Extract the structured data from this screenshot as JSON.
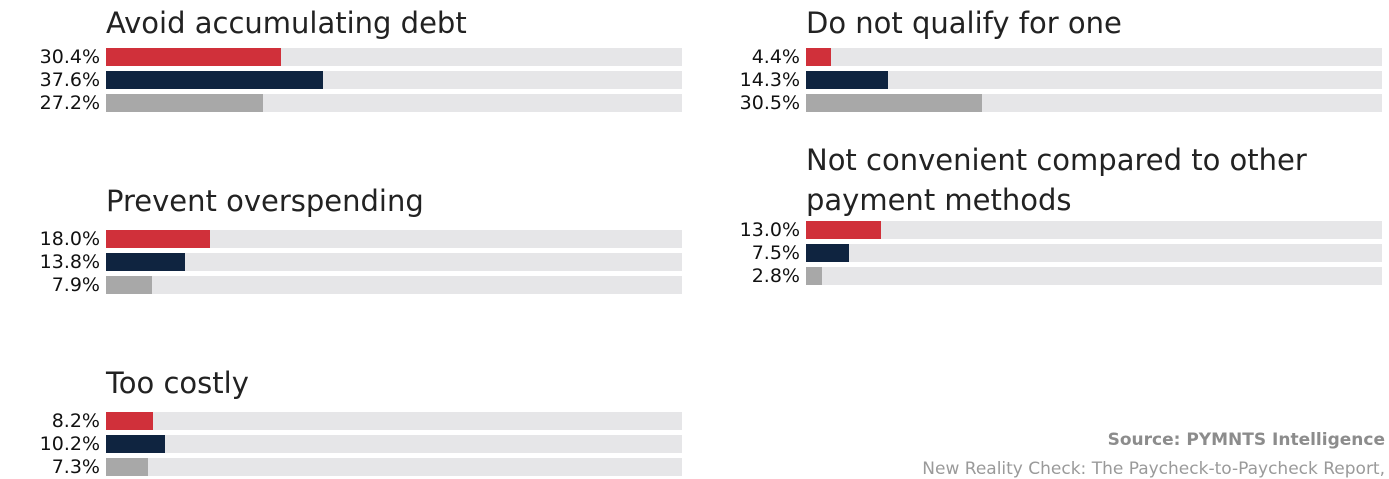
{
  "chart_data": [
    {
      "type": "bar",
      "title": "Avoid accumulating debt",
      "xlim": [
        0,
        100
      ],
      "series": [
        {
          "color": "#d0303a",
          "value": 30.4,
          "label": "30.4%"
        },
        {
          "color": "#0f2440",
          "value": 37.6,
          "label": "37.6%"
        },
        {
          "color": "#a8a8a8",
          "value": 27.2,
          "label": "27.2%"
        }
      ]
    },
    {
      "type": "bar",
      "title": "Prevent overspending",
      "xlim": [
        0,
        100
      ],
      "series": [
        {
          "color": "#d0303a",
          "value": 18.0,
          "label": "18.0%"
        },
        {
          "color": "#0f2440",
          "value": 13.8,
          "label": "13.8%"
        },
        {
          "color": "#a8a8a8",
          "value": 7.9,
          "label": "7.9%"
        }
      ]
    },
    {
      "type": "bar",
      "title": "Too costly",
      "xlim": [
        0,
        100
      ],
      "series": [
        {
          "color": "#d0303a",
          "value": 8.2,
          "label": "8.2%"
        },
        {
          "color": "#0f2440",
          "value": 10.2,
          "label": "10.2%"
        },
        {
          "color": "#a8a8a8",
          "value": 7.3,
          "label": "7.3%"
        }
      ]
    },
    {
      "type": "bar",
      "title": "Do not qualify for one",
      "xlim": [
        0,
        100
      ],
      "series": [
        {
          "color": "#d0303a",
          "value": 4.4,
          "label": "4.4%"
        },
        {
          "color": "#0f2440",
          "value": 14.3,
          "label": "14.3%"
        },
        {
          "color": "#a8a8a8",
          "value": 30.5,
          "label": "30.5%"
        }
      ]
    },
    {
      "type": "bar",
      "title": "Not convenient compared to other payment methods",
      "xlim": [
        0,
        100
      ],
      "series": [
        {
          "color": "#d0303a",
          "value": 13.0,
          "label": "13.0%"
        },
        {
          "color": "#0f2440",
          "value": 7.5,
          "label": "7.5%"
        },
        {
          "color": "#a8a8a8",
          "value": 2.8,
          "label": "2.8%"
        }
      ]
    }
  ],
  "footer": {
    "source": "Source: PYMNTS Intelligence",
    "report": "New Reality Check: The Paycheck-to-Paycheck Report,"
  }
}
